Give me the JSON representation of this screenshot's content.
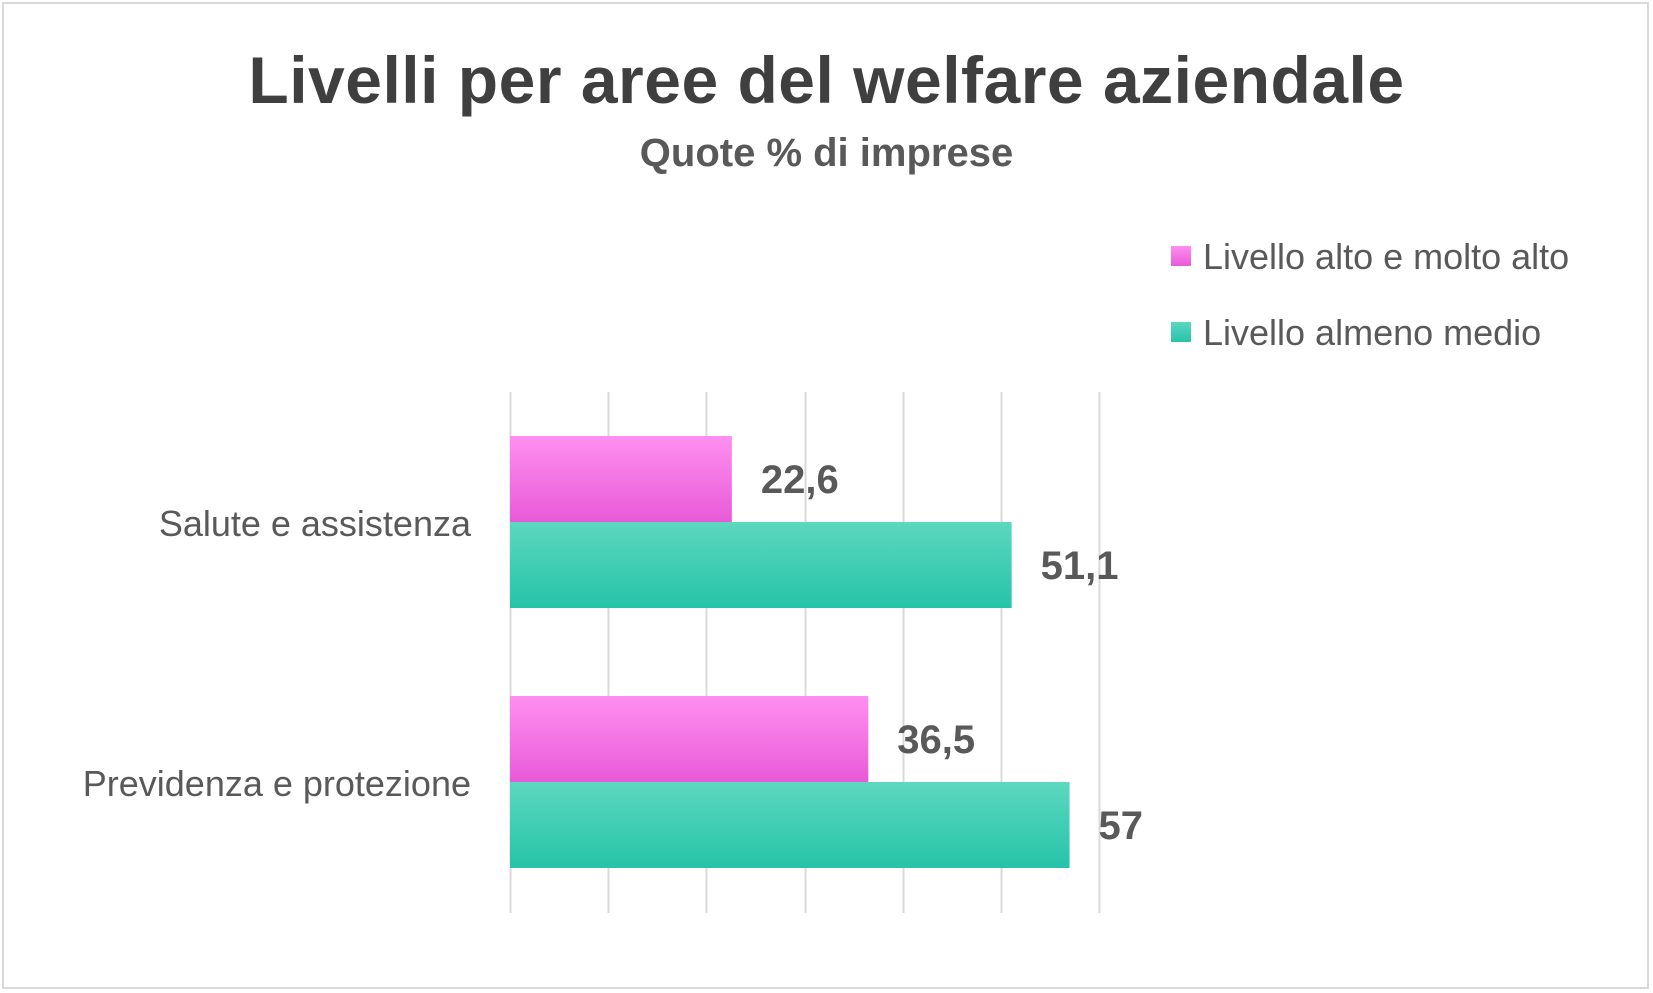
{
  "chart_data": {
    "type": "bar",
    "orientation": "horizontal",
    "title": "Livelli per aree del welfare aziendale",
    "subtitle": "Quote % di imprese",
    "categories": [
      "Salute e assistenza",
      "Previdenza e protezione"
    ],
    "series": [
      {
        "name": "Livello alto e molto alto",
        "values": [
          22.6,
          36.5
        ],
        "labels": [
          "22,6",
          "36,5"
        ],
        "color_top": "#ff8ff0",
        "color_bottom": "#e85ad8"
      },
      {
        "name": "Livello almeno medio",
        "values": [
          51.1,
          57
        ],
        "labels": [
          "51,1",
          "57"
        ],
        "color_top": "#5cd8bf",
        "color_bottom": "#26c3a8"
      }
    ],
    "xlim": [
      0,
      60
    ],
    "grid_step": 10,
    "grid": true,
    "axis_labels_shown": false,
    "legend_position": "top-right",
    "colors": {
      "title": "#3f3f3f",
      "subtitle": "#595959",
      "category_label": "#595959",
      "data_label": "#595959",
      "gridline": "#d9d9d9"
    }
  }
}
